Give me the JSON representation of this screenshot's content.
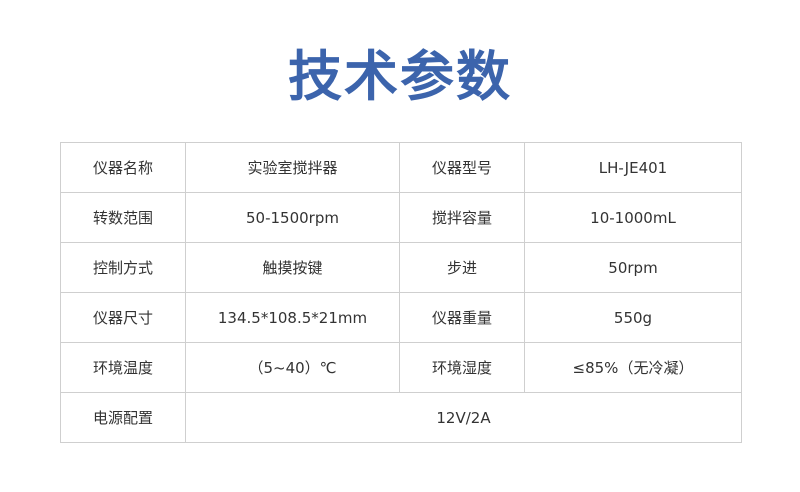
{
  "title": "技术参数",
  "rows": [
    [
      "仪器名称",
      "实验室搅拌器",
      "仪器型号",
      "LH-JE401"
    ],
    [
      "转数范围",
      "50-1500rpm",
      "搅拌容量",
      "10-1000mL"
    ],
    [
      "控制方式",
      "触摸按键",
      "步进",
      "50rpm"
    ],
    [
      "仪器尺寸",
      "134.5*108.5*21mm",
      "仪器重量",
      "550g"
    ],
    [
      "环境温度",
      "（5~40）℃",
      "环境湿度",
      "≤85%（无冷凝）"
    ],
    [
      "电源配置",
      "12V/2A"
    ]
  ],
  "colors": {
    "title": "#3c64ac",
    "border": "#cfcfcf"
  }
}
